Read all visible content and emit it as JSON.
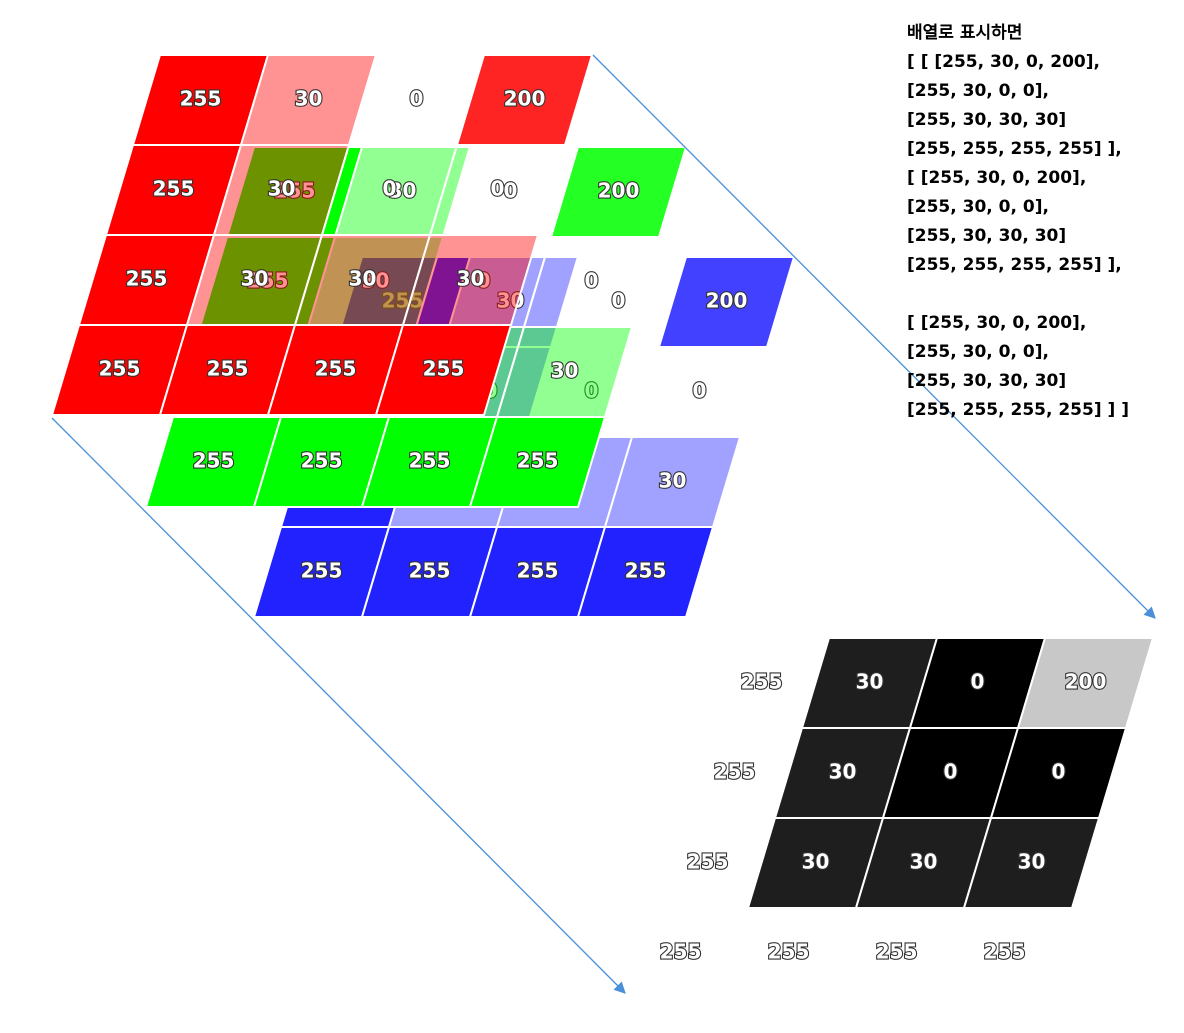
{
  "layers": [
    {
      "name": "red",
      "color": "#ff0000",
      "rows": [
        [
          255,
          30,
          0,
          200
        ],
        [
          255,
          30,
          0,
          0
        ],
        [
          255,
          30,
          30,
          30
        ],
        [
          255,
          255,
          255,
          255
        ]
      ]
    },
    {
      "name": "green",
      "color": "#00ff00",
      "rows": [
        [
          255,
          30,
          0,
          200
        ],
        [
          255,
          30,
          0,
          0
        ],
        [
          255,
          30,
          30,
          30
        ],
        [
          255,
          255,
          255,
          255
        ]
      ]
    },
    {
      "name": "blue",
      "color": "#2222ff",
      "rows": [
        [
          255,
          30,
          0,
          200
        ],
        [
          255,
          30,
          0,
          0
        ],
        [
          255,
          30,
          30,
          30
        ],
        [
          255,
          255,
          255,
          255
        ]
      ]
    }
  ],
  "grayscale": {
    "rows": [
      [
        255,
        30,
        0,
        200
      ],
      [
        255,
        30,
        0,
        0
      ],
      [
        255,
        30,
        30,
        30
      ],
      [
        255,
        255,
        255,
        255
      ]
    ]
  },
  "array_text": {
    "paragraphs": [
      [
        "배열로 표시하면",
        "[ [ [255, 30, 0, 200],",
        "[255, 30, 0, 0],",
        "[255, 30, 30, 30]",
        "[255, 255, 255, 255] ],",
        "[ [255, 30, 0, 200],",
        "[255, 30, 0, 0],",
        "[255, 30, 30, 30]",
        "[255, 255, 255, 255] ],"
      ],
      [
        "[ [255, 30, 0, 200],",
        "[255, 30, 0, 0],",
        "[255, 30, 30, 30]",
        "[255, 255, 255, 255] ] ]"
      ]
    ]
  }
}
